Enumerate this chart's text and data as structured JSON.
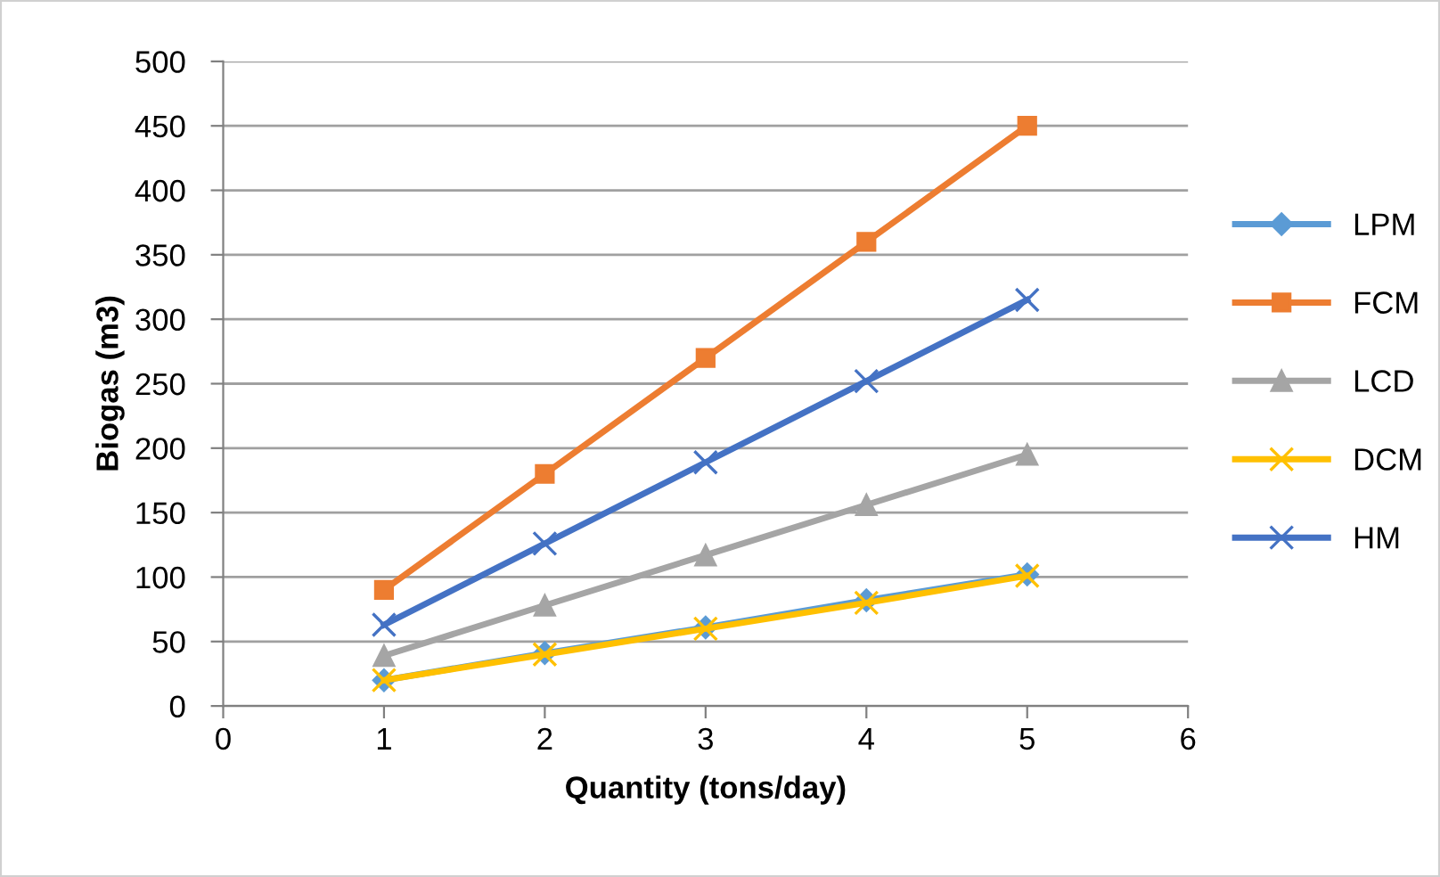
{
  "chart_data": {
    "type": "line",
    "xlabel": "Quantity (tons/day)",
    "ylabel": "Biogas (m3)",
    "x": [
      1,
      2,
      3,
      4,
      5
    ],
    "series": [
      {
        "name": "LPM",
        "color": "#5b9bd5",
        "marker": "diamond",
        "values": [
          20,
          41,
          61,
          82,
          102
        ]
      },
      {
        "name": "FCM",
        "color": "#ed7d31",
        "marker": "square",
        "values": [
          90,
          180,
          270,
          360,
          450
        ]
      },
      {
        "name": "LCD",
        "color": "#a5a5a5",
        "marker": "triangle",
        "values": [
          39,
          78,
          117,
          156,
          195
        ]
      },
      {
        "name": "DCM",
        "color": "#ffc000",
        "marker": "cross",
        "values": [
          20,
          40,
          60,
          80,
          101
        ]
      },
      {
        "name": "HM",
        "color": "#4472c4",
        "marker": "cross",
        "values": [
          63,
          126,
          189,
          252,
          315
        ]
      }
    ],
    "xlim": [
      0,
      6
    ],
    "xticks": [
      0,
      1,
      2,
      3,
      4,
      5,
      6
    ],
    "ylim": [
      0,
      500
    ],
    "yticks": [
      0,
      50,
      100,
      150,
      200,
      250,
      300,
      350,
      400,
      450,
      500
    ],
    "grid": "y",
    "legend": "right",
    "line_style": "solid"
  }
}
